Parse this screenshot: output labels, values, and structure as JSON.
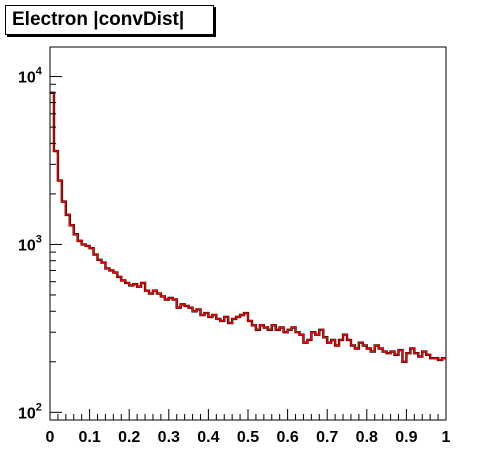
{
  "chart_data": {
    "type": "line",
    "title": "Electron |convDist|",
    "xlabel": "",
    "ylabel": "",
    "xlim": [
      0,
      1
    ],
    "ylim": [
      90,
      15000
    ],
    "y_scale": "log",
    "x_ticks": [
      "0",
      "0.1",
      "0.2",
      "0.3",
      "0.4",
      "0.5",
      "0.6",
      "0.7",
      "0.8",
      "0.9",
      "1"
    ],
    "y_ticks": [
      {
        "base": "10",
        "exp": "2",
        "value": 100
      },
      {
        "base": "10",
        "exp": "3",
        "value": 1000
      },
      {
        "base": "10",
        "exp": "4",
        "value": 10000
      }
    ],
    "bin_width": 0.01,
    "grid": false,
    "legend": "none",
    "series_colors": [
      "#ff0000",
      "#000000"
    ],
    "series": [
      {
        "values": [
          8000,
          3600,
          2400,
          1800,
          1500,
          1300,
          1150,
          1050,
          1000,
          980,
          950,
          870,
          810,
          780,
          720,
          700,
          680,
          640,
          610,
          590,
          570,
          580,
          560,
          590,
          530,
          510,
          530,
          510,
          490,
          470,
          480,
          470,
          420,
          440,
          430,
          420,
          400,
          410,
          380,
          390,
          370,
          380,
          360,
          350,
          370,
          340,
          360,
          370,
          380,
          390,
          350,
          330,
          310,
          330,
          320,
          310,
          330,
          310,
          320,
          300,
          310,
          320,
          300,
          290,
          260,
          270,
          300,
          290,
          310,
          280,
          260,
          270,
          250,
          270,
          290,
          270,
          250,
          240,
          260,
          250,
          240,
          230,
          250,
          240,
          230,
          225,
          230,
          220,
          235,
          200,
          225,
          240,
          225,
          215,
          230,
          220,
          210,
          210,
          205,
          210
        ]
      }
    ]
  }
}
